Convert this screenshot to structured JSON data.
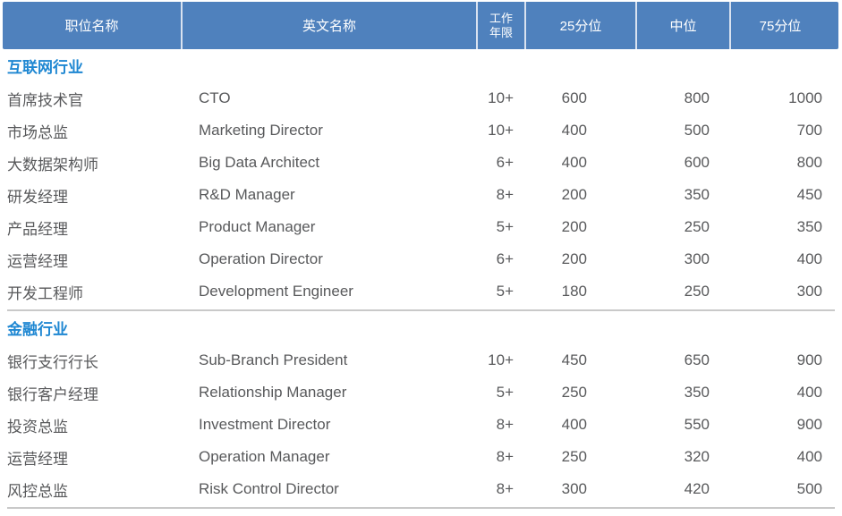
{
  "colors": {
    "header_background": "#4f81bd",
    "header_text": "#ffffff",
    "header_divider": "#d9e2f0",
    "section_title_blue": "#1e87d2",
    "body_text": "#58595b",
    "divider_gray": "#c9c9c9"
  },
  "table": {
    "columns": [
      "职位名称",
      "英文名称",
      "工作年限",
      "25分位",
      "中位",
      "75分位"
    ],
    "sections": [
      {
        "title": "互联网行业",
        "rows": [
          {
            "position_cn": "首席技术官",
            "position_en": "CTO",
            "years": "10+",
            "p25": "600",
            "median": "800",
            "p75": "1000"
          },
          {
            "position_cn": "市场总监",
            "position_en": "Marketing Director",
            "years": "10+",
            "p25": "400",
            "median": "500",
            "p75": "700"
          },
          {
            "position_cn": "大数据架构师",
            "position_en": "Big Data Architect",
            "years": "6+",
            "p25": "400",
            "median": "600",
            "p75": "800"
          },
          {
            "position_cn": "研发经理",
            "position_en": "R&D Manager",
            "years": "8+",
            "p25": "200",
            "median": "350",
            "p75": "450"
          },
          {
            "position_cn": "产品经理",
            "position_en": "Product Manager",
            "years": "5+",
            "p25": "200",
            "median": "250",
            "p75": "350"
          },
          {
            "position_cn": "运营经理",
            "position_en": "Operation Director",
            "years": "6+",
            "p25": "200",
            "median": "300",
            "p75": "400"
          },
          {
            "position_cn": "开发工程师",
            "position_en": "Development Engineer",
            "years": "5+",
            "p25": "180",
            "median": "250",
            "p75": "300"
          }
        ]
      },
      {
        "title": "金融行业",
        "rows": [
          {
            "position_cn": "银行支行行长",
            "position_en": "Sub-Branch President",
            "years": "10+",
            "p25": "450",
            "median": "650",
            "p75": "900"
          },
          {
            "position_cn": "银行客户经理",
            "position_en": "Relationship Manager",
            "years": "5+",
            "p25": "250",
            "median": "350",
            "p75": "400"
          },
          {
            "position_cn": "投资总监",
            "position_en": "Investment Director",
            "years": "8+",
            "p25": "400",
            "median": "550",
            "p75": "900"
          },
          {
            "position_cn": "运营经理",
            "position_en": "Operation Manager",
            "years": "8+",
            "p25": "250",
            "median": "320",
            "p75": "400"
          },
          {
            "position_cn": "风控总监",
            "position_en": "Risk Control Director",
            "years": "8+",
            "p25": "300",
            "median": "420",
            "p75": "500"
          }
        ]
      }
    ]
  }
}
